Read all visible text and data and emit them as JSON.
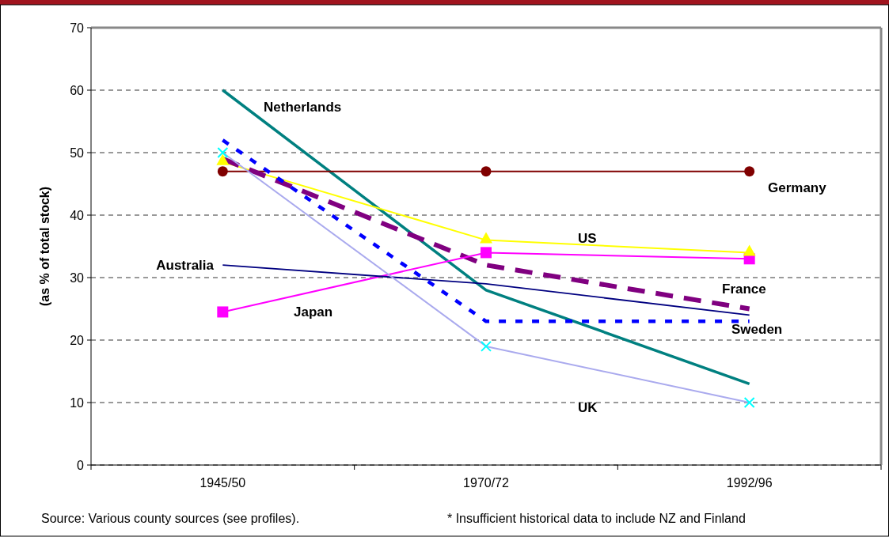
{
  "chart_data": {
    "type": "line",
    "ylabel": "(as % of total stock)",
    "categories": [
      "1945/50",
      "1970/72",
      "1992/96"
    ],
    "ylim": [
      0,
      70
    ],
    "yticks": [
      0,
      10,
      20,
      30,
      40,
      50,
      60,
      70
    ],
    "grid": "y",
    "annotations": [
      "Source: Various county sources (see profiles).",
      "* Insufficient historical data to include NZ and Finland"
    ],
    "series": [
      {
        "name": "Netherlands",
        "color": "#008080",
        "values": [
          60,
          28,
          13
        ],
        "marker": "none",
        "line_style": "solid"
      },
      {
        "name": "Germany",
        "color": "#800000",
        "values": [
          47,
          47,
          47
        ],
        "marker": "circle",
        "line_style": "solid"
      },
      {
        "name": "US",
        "color": "#ffff00",
        "values": [
          48.5,
          36,
          34
        ],
        "marker": "triangle",
        "line_style": "solid"
      },
      {
        "name": "France",
        "color": "#800080",
        "values": [
          49,
          32,
          25
        ],
        "marker": "none",
        "line_style": "dashed"
      },
      {
        "name": "Japan",
        "color": "#ff00ff",
        "values": [
          24.5,
          34,
          33
        ],
        "marker": "square",
        "line_style": "solid"
      },
      {
        "name": "Australia",
        "color": "#000080",
        "values": [
          32,
          29,
          24
        ],
        "marker": "none",
        "line_style": "solid"
      },
      {
        "name": "Sweden",
        "color": "#0000ff",
        "values": [
          52,
          23,
          23
        ],
        "marker": "none",
        "line_style": "dotted"
      },
      {
        "name": "UK",
        "color": "#aaaaee",
        "colors": [
          "#00ffff",
          "#00ffff",
          "#00ffff"
        ],
        "values": [
          50,
          19,
          10
        ],
        "marker": "cross",
        "line_style": "solid"
      }
    ]
  }
}
